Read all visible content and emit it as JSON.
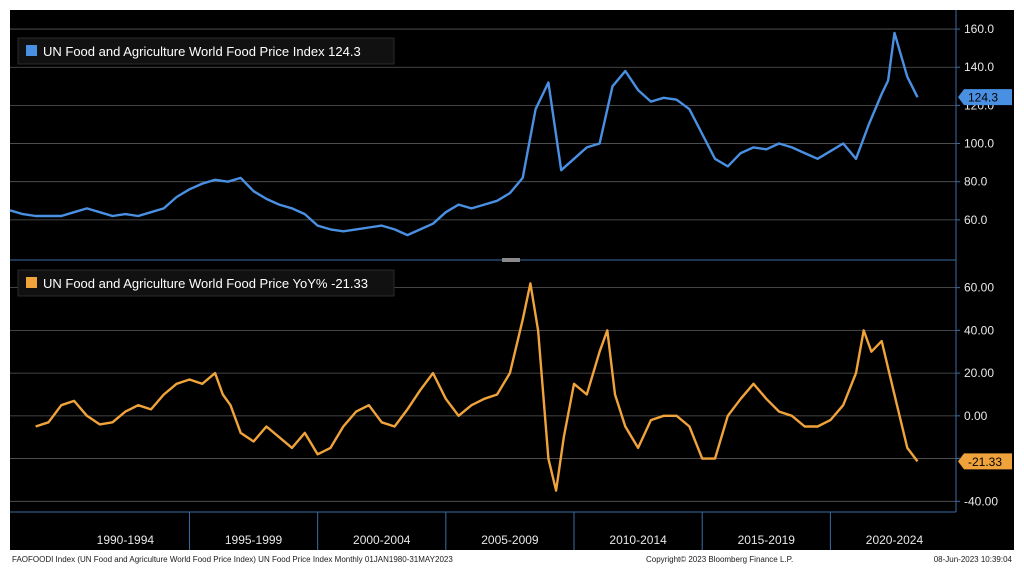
{
  "chart_data": [
    {
      "type": "line",
      "legend_label": "UN Food and Agriculture World Food Price Index 124.3",
      "last_value_label": "124.3",
      "color": "#4a90e2",
      "ylim": [
        40,
        170
      ],
      "yticks": [
        "60.0",
        "80.0",
        "100.0",
        "120.0",
        "140.0",
        "160.0"
      ],
      "grid": "horizontal",
      "legend_position": "top-left",
      "x": [
        "1988.0",
        "1988.5",
        "1989.0",
        "1989.5",
        "1990.0",
        "1990.5",
        "1991.0",
        "1991.5",
        "1992.0",
        "1992.5",
        "1993.0",
        "1993.5",
        "1994.0",
        "1994.5",
        "1995.0",
        "1995.5",
        "1996.0",
        "1996.5",
        "1997.0",
        "1997.5",
        "1998.0",
        "1998.5",
        "1999.0",
        "1999.5",
        "2000.0",
        "2000.5",
        "2001.0",
        "2001.5",
        "2002.0",
        "2002.5",
        "2003.0",
        "2003.5",
        "2004.0",
        "2004.5",
        "2005.0",
        "2005.5",
        "2006.0",
        "2006.5",
        "2007.0",
        "2007.5",
        "2008.0",
        "2008.5",
        "2009.0",
        "2009.5",
        "2010.0",
        "2010.5",
        "2011.0",
        "2011.5",
        "2012.0",
        "2012.5",
        "2013.0",
        "2013.5",
        "2014.0",
        "2014.5",
        "2015.0",
        "2015.5",
        "2016.0",
        "2016.5",
        "2017.0",
        "2017.5",
        "2018.0",
        "2018.5",
        "2019.0",
        "2019.5",
        "2020.0",
        "2020.5",
        "2021.0",
        "2021.5",
        "2022.0",
        "2022.25",
        "2022.5",
        "2023.0",
        "2023.4"
      ],
      "values": [
        65,
        63,
        62,
        62,
        62,
        64,
        66,
        64,
        62,
        63,
        62,
        64,
        66,
        72,
        76,
        79,
        81,
        80,
        82,
        75,
        71,
        68,
        66,
        63,
        57,
        55,
        54,
        55,
        56,
        57,
        55,
        52,
        55,
        58,
        64,
        68,
        66,
        68,
        70,
        74,
        82,
        118,
        132,
        86,
        92,
        98,
        100,
        130,
        138,
        128,
        122,
        124,
        123,
        118,
        105,
        92,
        88,
        95,
        98,
        97,
        100,
        98,
        95,
        92,
        96,
        100,
        92,
        110,
        126,
        133,
        158,
        135,
        124.3
      ]
    },
    {
      "type": "line",
      "legend_label": "UN Food and Agriculture World Food Price YoY% -21.33",
      "last_value_label": "-21.33",
      "color": "#f0a33a",
      "ylim": [
        -45,
        72
      ],
      "yticks": [
        "-40.00",
        "-20.00",
        "0.00",
        "20.00",
        "40.00",
        "60.00"
      ],
      "grid": "horizontal",
      "legend_position": "top-left",
      "x": [
        "1989.0",
        "1989.5",
        "1990.0",
        "1990.5",
        "1991.0",
        "1991.5",
        "1992.0",
        "1992.5",
        "1993.0",
        "1993.5",
        "1994.0",
        "1994.5",
        "1995.0",
        "1995.5",
        "1996.0",
        "1996.3",
        "1996.6",
        "1997.0",
        "1997.5",
        "1998.0",
        "1998.5",
        "1999.0",
        "1999.5",
        "2000.0",
        "2000.5",
        "2001.0",
        "2001.5",
        "2002.0",
        "2002.5",
        "2003.0",
        "2003.5",
        "2004.0",
        "2004.5",
        "2005.0",
        "2005.5",
        "2006.0",
        "2006.5",
        "2007.0",
        "2007.5",
        "2008.0",
        "2008.3",
        "2008.6",
        "2009.0",
        "2009.3",
        "2009.6",
        "2010.0",
        "2010.5",
        "2011.0",
        "2011.3",
        "2011.6",
        "2012.0",
        "2012.5",
        "2013.0",
        "2013.5",
        "2014.0",
        "2014.5",
        "2015.0",
        "2015.5",
        "2016.0",
        "2016.5",
        "2017.0",
        "2017.5",
        "2018.0",
        "2018.5",
        "2019.0",
        "2019.5",
        "2020.0",
        "2020.5",
        "2021.0",
        "2021.3",
        "2021.6",
        "2022.0",
        "2022.3",
        "2022.6",
        "2023.0",
        "2023.4"
      ],
      "values": [
        -5,
        -3,
        5,
        7,
        0,
        -4,
        -3,
        2,
        5,
        3,
        10,
        15,
        17,
        15,
        20,
        10,
        5,
        -8,
        -12,
        -5,
        -10,
        -15,
        -8,
        -18,
        -15,
        -5,
        2,
        5,
        -3,
        -5,
        3,
        12,
        20,
        8,
        0,
        5,
        8,
        10,
        20,
        45,
        62,
        40,
        -20,
        -35,
        -10,
        15,
        10,
        30,
        40,
        10,
        -5,
        -15,
        -2,
        0,
        0,
        -5,
        -20,
        -20,
        0,
        8,
        15,
        8,
        2,
        0,
        -5,
        -5,
        -2,
        5,
        20,
        40,
        30,
        35,
        20,
        5,
        -15,
        -21.33
      ]
    }
  ],
  "x_periods": [
    "1990-1994",
    "1995-1999",
    "2000-2004",
    "2005-2009",
    "2010-2014",
    "2015-2019",
    "2020-2024"
  ],
  "footer": {
    "source": "FAOFOODI Index (UN Food and Agriculture World Food Price Index) UN Food Price Index  Monthly 01JAN1980-31MAY2023",
    "copyright": "Copyright© 2023 Bloomberg Finance L.P.",
    "timestamp": "08-Jun-2023 10:39:04"
  },
  "colors": {
    "background": "#000000",
    "grid": "#5a5a5a",
    "axis": "#3a6ea5",
    "panel_divider": "#3a6ea5"
  }
}
